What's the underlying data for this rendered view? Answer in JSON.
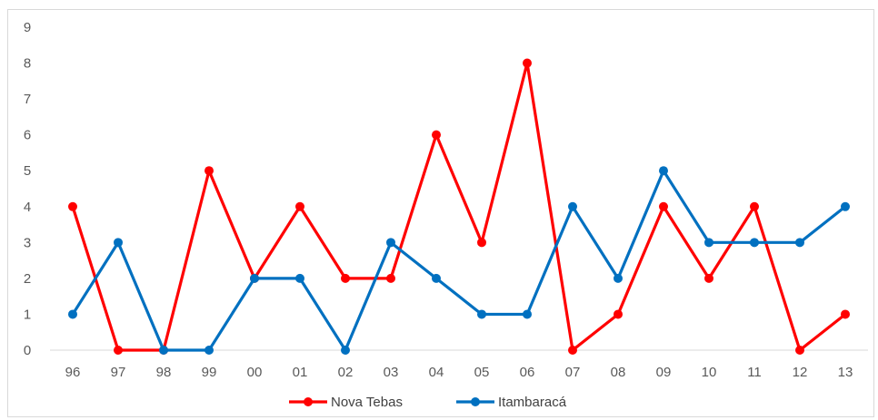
{
  "chart_data": {
    "type": "line",
    "title": "",
    "xlabel": "",
    "ylabel": "",
    "categories": [
      "96",
      "97",
      "98",
      "99",
      "00",
      "01",
      "02",
      "03",
      "04",
      "05",
      "06",
      "07",
      "08",
      "09",
      "10",
      "11",
      "12",
      "13"
    ],
    "ylim": [
      0,
      9
    ],
    "yticks": [
      0,
      1,
      2,
      3,
      4,
      5,
      6,
      7,
      8,
      9
    ],
    "grid": false,
    "legend": "bottom-center",
    "series": [
      {
        "name": "Nova Tebas",
        "color": "#ff0000",
        "values": [
          4,
          0,
          0,
          5,
          2,
          4,
          2,
          2,
          6,
          3,
          8,
          0,
          1,
          4,
          2,
          4,
          0,
          1
        ]
      },
      {
        "name": "Itambaracá",
        "color": "#0070c0",
        "values": [
          1,
          3,
          0,
          0,
          2,
          2,
          0,
          3,
          2,
          1,
          1,
          4,
          2,
          5,
          3,
          3,
          3,
          4
        ]
      }
    ]
  }
}
